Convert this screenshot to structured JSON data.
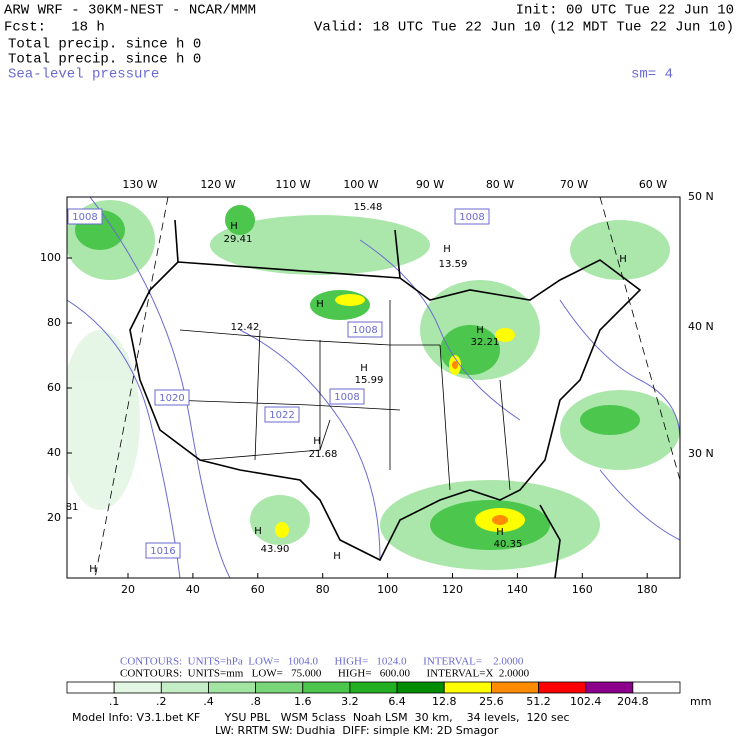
{
  "header": {
    "model": "ARW WRF - 30KM-NEST - NCAR/MMM",
    "init": "Init: 00 UTC Tue 22 Jun 10",
    "fcst": "Fcst:   18 h",
    "valid": "Valid: 18 UTC Tue 22 Jun 10 (12 MDT Tue 22 Jun 10)",
    "fields": [
      "Total precip. since h 0",
      "Total precip. since h 0",
      "Sea-level pressure"
    ],
    "smoothing": "sm= 4"
  },
  "lon_labels": [
    "130 W",
    "120 W",
    "110 W",
    "100 W",
    "90 W",
    "80 W",
    "70 W",
    "60 W"
  ],
  "lat_labels": [
    "50 N",
    "40 N",
    "30 N"
  ],
  "x_axis_labels": [
    "20",
    "40",
    "60",
    "80",
    "100",
    "120",
    "140",
    "160",
    "180"
  ],
  "y_axis_labels": [
    "100",
    "80",
    "60",
    "40",
    "20"
  ],
  "map_labels": [
    "1008",
    "H",
    "29.41",
    "15.48",
    "1008",
    "H",
    "13.59",
    "H",
    "H",
    "12.42",
    "1008",
    "H",
    "32.21",
    "H",
    "15.99",
    "1020",
    "1008",
    "1022",
    "H",
    "21.68",
    "1016",
    "H",
    "43.90",
    "H",
    "H",
    "40.35",
    "H",
    "81"
  ],
  "contour_info": [
    "CONTOURS:  UNITS=hPa  LOW=   1004.0      HIGH=   1024.0      INTERVAL=    2.0000",
    "CONTOURS:  UNITS=mm   LOW=   75.000      HIGH=   600.00      INTERVAL=X  2.0000"
  ],
  "colorbar": {
    "labels": [
      ".1",
      ".2",
      ".4",
      ".8",
      "1.6",
      "3.2",
      "6.4",
      "12.8",
      "25.6",
      "51.2",
      "102.4",
      "204.8"
    ],
    "colors": [
      "#ffffff",
      "#e4f6e4",
      "#c6eec6",
      "#a2e4a2",
      "#78d678",
      "#4cc64c",
      "#22b022",
      "#008c00",
      "#ffff00",
      "#ff8c00",
      "#ff0000",
      "#8c008c",
      "#ffffff"
    ],
    "unit": "mm"
  },
  "footer": [
    "Model Info: V3.1.bet KF       YSU PBL   WSM 5class  Noah LSM  30 km,    34 levels,  120 sec",
    "LW: RRTM SW: Dudhia  DIFF: simple KM: 2D Smagor"
  ]
}
